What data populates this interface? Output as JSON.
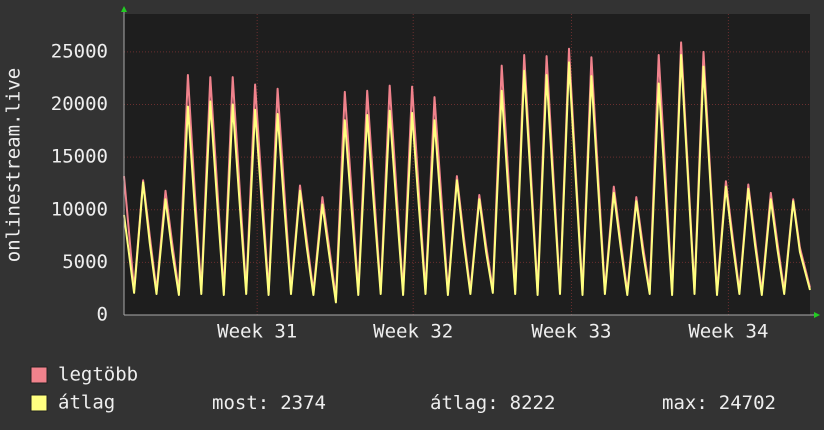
{
  "chart_data": {
    "type": "line",
    "y_label": "onlinestream.live",
    "xlim": [
      0,
      30.6
    ],
    "xticks": [
      {
        "value": 5.94,
        "label": "Week 31"
      },
      {
        "value": 12.9,
        "label": "Week 32"
      },
      {
        "value": 19.96,
        "label": "Week 33"
      },
      {
        "value": 26.96,
        "label": "Week 34"
      }
    ],
    "ylim": [
      0,
      28600
    ],
    "yticks": [
      0,
      5000,
      10000,
      15000,
      20000,
      25000
    ],
    "grid": true,
    "x": [
      0,
      0.45,
      0.85,
      1.15,
      1.45,
      1.85,
      2.15,
      2.45,
      2.85,
      3.15,
      3.45,
      3.85,
      4.15,
      4.45,
      4.85,
      5.15,
      5.45,
      5.85,
      6.15,
      6.45,
      6.85,
      7.15,
      7.45,
      7.85,
      8.15,
      8.45,
      8.85,
      9.15,
      9.45,
      9.85,
      10.15,
      10.45,
      10.85,
      11.15,
      11.45,
      11.85,
      12.15,
      12.45,
      12.85,
      13.15,
      13.45,
      13.85,
      14.15,
      14.45,
      14.85,
      15.15,
      15.45,
      15.85,
      16.15,
      16.45,
      16.85,
      17.15,
      17.45,
      17.85,
      18.15,
      18.45,
      18.85,
      19.15,
      19.45,
      19.85,
      20.15,
      20.45,
      20.85,
      21.15,
      21.45,
      21.85,
      22.15,
      22.45,
      22.85,
      23.15,
      23.45,
      23.85,
      24.15,
      24.45,
      24.85,
      25.15,
      25.45,
      25.85,
      26.15,
      26.45,
      26.85,
      27.15,
      27.45,
      27.85,
      28.15,
      28.45,
      28.85,
      29.15,
      29.45,
      29.85,
      30.15,
      30.6
    ],
    "series": [
      {
        "name": "legtöbb",
        "color": "#f0828c",
        "values": [
          13200,
          2400,
          12800,
          7500,
          2300,
          11800,
          6800,
          2200,
          22800,
          12000,
          2300,
          22600,
          12500,
          2200,
          22600,
          12300,
          2300,
          21900,
          12000,
          2200,
          21500,
          11800,
          2300,
          12300,
          7200,
          2200,
          11200,
          6500,
          1600,
          21200,
          11800,
          2200,
          21300,
          11600,
          2300,
          21800,
          12000,
          2200,
          21700,
          11800,
          2300,
          20700,
          11400,
          2200,
          13200,
          7600,
          2300,
          11400,
          6600,
          2400,
          23700,
          13000,
          2300,
          24700,
          13500,
          2200,
          24600,
          13400,
          2300,
          25300,
          13800,
          2200,
          24500,
          13300,
          2300,
          12200,
          7100,
          2200,
          11200,
          6500,
          2300,
          24700,
          13500,
          2200,
          25900,
          14000,
          2300,
          25000,
          13600,
          2200,
          12700,
          7400,
          2300,
          12400,
          7200,
          2200,
          11600,
          6800,
          2300,
          11000,
          6400,
          2600
        ]
      },
      {
        "name": "átlag",
        "color": "#ffff80",
        "values": [
          9500,
          2100,
          12600,
          6800,
          2000,
          11000,
          6000,
          1900,
          19800,
          10500,
          2000,
          20300,
          11000,
          1900,
          20000,
          10800,
          2000,
          19500,
          10500,
          1900,
          19100,
          10300,
          2000,
          11800,
          6500,
          1900,
          10500,
          5800,
          1200,
          18500,
          10200,
          1900,
          19000,
          10300,
          2000,
          19400,
          10500,
          1900,
          19200,
          10400,
          2000,
          18500,
          10000,
          1900,
          12800,
          7000,
          2000,
          11000,
          6000,
          2100,
          21300,
          11500,
          2000,
          23200,
          12500,
          1900,
          22800,
          12300,
          2000,
          24000,
          13000,
          1900,
          22700,
          12200,
          2000,
          11600,
          6500,
          1900,
          10800,
          5900,
          2000,
          22000,
          12000,
          1900,
          24700,
          13300,
          2000,
          23600,
          12800,
          1900,
          12200,
          6800,
          2000,
          12000,
          6600,
          1900,
          11000,
          6200,
          2000,
          10800,
          6000,
          2374
        ]
      }
    ],
    "stats": [
      {
        "label": "most:",
        "value": 2374
      },
      {
        "label": "átlag:",
        "value": 8222
      },
      {
        "label": "max:",
        "value": 24702
      }
    ]
  }
}
